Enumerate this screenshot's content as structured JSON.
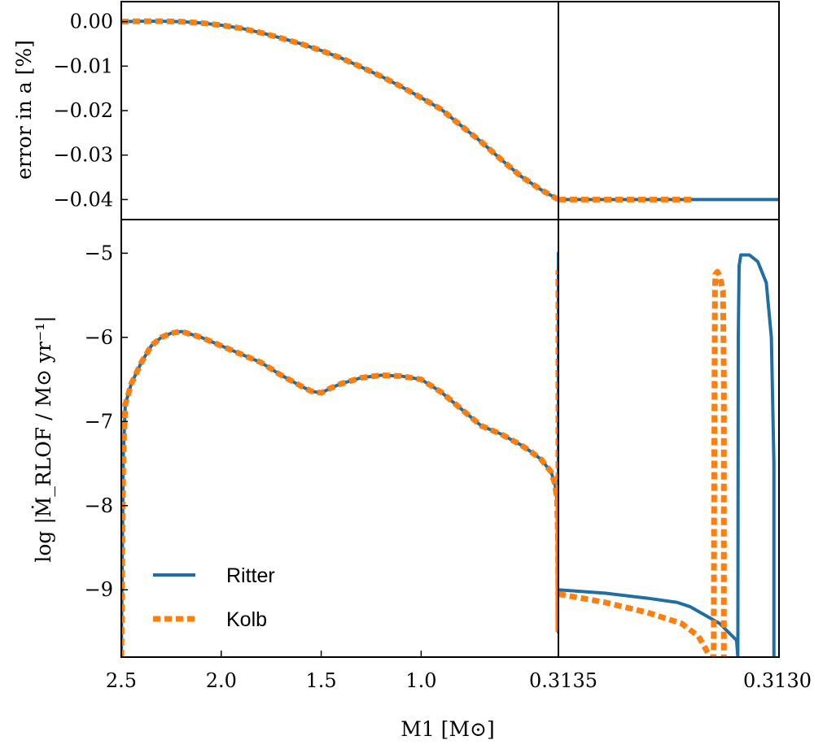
{
  "colors": {
    "ritter": "#1f6fa3",
    "kolb": "#ff7f0e",
    "axes": "#000000",
    "background": "#ffffff"
  },
  "chart_data": [
    {
      "id": "top-left",
      "type": "line",
      "ylabel": "error in a [%]",
      "xlim": [
        2.5,
        0.3135
      ],
      "ylim": [
        -0.0445,
        0.0045
      ],
      "yticks": [
        0.0,
        -0.01,
        -0.02,
        -0.03,
        -0.04
      ],
      "ytick_labels": [
        "0.00",
        "−0.01",
        "−0.02",
        "−0.03",
        "−0.04"
      ],
      "series": [
        {
          "name": "Ritter",
          "style": "solid",
          "x": [
            2.5,
            2.4,
            2.3,
            2.2,
            2.1,
            2.0,
            1.9,
            1.8,
            1.7,
            1.6,
            1.5,
            1.4,
            1.3,
            1.2,
            1.1,
            1.0,
            0.9,
            0.8,
            0.7,
            0.6,
            0.5,
            0.4,
            0.3135
          ],
          "y": [
            0.0,
            0.0001,
            0.0001,
            0.0,
            -0.0003,
            -0.0008,
            -0.0015,
            -0.0025,
            -0.0037,
            -0.005,
            -0.0065,
            -0.0082,
            -0.0102,
            -0.0123,
            -0.0146,
            -0.0171,
            -0.0197,
            -0.0234,
            -0.027,
            -0.031,
            -0.0348,
            -0.0378,
            -0.04
          ]
        },
        {
          "name": "Kolb",
          "style": "dashed",
          "x": [
            2.5,
            2.4,
            2.3,
            2.2,
            2.1,
            2.0,
            1.9,
            1.8,
            1.7,
            1.6,
            1.5,
            1.4,
            1.3,
            1.2,
            1.1,
            1.0,
            0.9,
            0.8,
            0.7,
            0.6,
            0.5,
            0.4,
            0.3135
          ],
          "y": [
            0.0,
            0.0001,
            0.0001,
            0.0,
            -0.0003,
            -0.0008,
            -0.0015,
            -0.0025,
            -0.0037,
            -0.005,
            -0.0065,
            -0.0082,
            -0.0102,
            -0.0123,
            -0.0146,
            -0.0171,
            -0.0197,
            -0.0234,
            -0.027,
            -0.031,
            -0.0348,
            -0.0378,
            -0.04
          ]
        }
      ]
    },
    {
      "id": "top-right",
      "type": "line",
      "xlim": [
        0.31351,
        0.31299
      ],
      "ylim": [
        -0.0445,
        0.0045
      ],
      "series": [
        {
          "name": "Ritter",
          "style": "solid",
          "x": [
            0.31351,
            0.31299
          ],
          "y": [
            -0.04,
            -0.04
          ]
        },
        {
          "name": "Kolb",
          "style": "dashed",
          "x": [
            0.31351,
            0.31319
          ],
          "y": [
            -0.04,
            -0.04
          ]
        }
      ]
    },
    {
      "id": "bottom-left",
      "type": "line",
      "ylabel": "log |Ṁ_RLOF / M⊙ yr⁻¹|",
      "xlabel": "M1 [M⊙]",
      "xlim": [
        2.5,
        0.3135
      ],
      "ylim": [
        -9.8,
        -4.6
      ],
      "xticks": [
        2.5,
        2.0,
        1.5,
        1.0
      ],
      "xtick_labels": [
        "2.5",
        "2.0",
        "1.5",
        "1.0"
      ],
      "yticks": [
        -5,
        -6,
        -7,
        -8,
        -9
      ],
      "ytick_labels": [
        "−5",
        "−6",
        "−7",
        "−8",
        "−9"
      ],
      "series": [
        {
          "name": "Ritter",
          "style": "solid",
          "x": [
            2.5,
            2.49,
            2.48,
            2.45,
            2.4,
            2.35,
            2.3,
            2.25,
            2.2,
            2.1,
            2.0,
            1.9,
            1.8,
            1.7,
            1.6,
            1.55,
            1.5,
            1.45,
            1.4,
            1.3,
            1.2,
            1.1,
            1.0,
            0.9,
            0.8,
            0.7,
            0.6,
            0.5,
            0.45,
            0.4,
            0.35,
            0.33,
            0.32,
            0.3155,
            0.3142,
            0.3138,
            0.3136,
            0.3135
          ],
          "y": [
            -9.8,
            -7.4,
            -6.8,
            -6.55,
            -6.3,
            -6.1,
            -6.0,
            -5.95,
            -5.93,
            -6.0,
            -6.1,
            -6.2,
            -6.3,
            -6.45,
            -6.58,
            -6.64,
            -6.66,
            -6.6,
            -6.55,
            -6.48,
            -6.45,
            -6.46,
            -6.5,
            -6.65,
            -6.85,
            -7.05,
            -7.15,
            -7.28,
            -7.36,
            -7.45,
            -7.6,
            -7.75,
            -7.95,
            -8.4,
            -9.0,
            -9.5,
            -6.5,
            -5.0
          ]
        },
        {
          "name": "Kolb",
          "style": "dashed",
          "x": [
            2.5,
            2.49,
            2.48,
            2.45,
            2.4,
            2.35,
            2.3,
            2.25,
            2.2,
            2.1,
            2.0,
            1.9,
            1.8,
            1.7,
            1.6,
            1.55,
            1.5,
            1.45,
            1.4,
            1.3,
            1.2,
            1.1,
            1.0,
            0.9,
            0.8,
            0.7,
            0.6,
            0.5,
            0.45,
            0.4,
            0.35,
            0.33,
            0.32,
            0.3155,
            0.3142,
            0.3138,
            0.3136,
            0.3135
          ],
          "y": [
            -9.8,
            -7.4,
            -6.8,
            -6.55,
            -6.3,
            -6.1,
            -6.0,
            -5.95,
            -5.93,
            -6.0,
            -6.1,
            -6.2,
            -6.3,
            -6.45,
            -6.58,
            -6.64,
            -6.66,
            -6.6,
            -6.55,
            -6.48,
            -6.45,
            -6.46,
            -6.5,
            -6.65,
            -6.85,
            -7.05,
            -7.15,
            -7.28,
            -7.36,
            -7.45,
            -7.6,
            -7.75,
            -7.95,
            -8.4,
            -9.0,
            -9.5,
            -6.5,
            -5.2
          ]
        }
      ]
    },
    {
      "id": "bottom-right",
      "type": "line",
      "xlim": [
        0.31351,
        0.31299
      ],
      "ylim": [
        -9.8,
        -4.6
      ],
      "xticks": [
        0.31351,
        0.31299
      ],
      "xtick_labels": [
        "0.3135",
        "0.3130"
      ],
      "series": [
        {
          "name": "Ritter",
          "style": "solid",
          "x": [
            0.31351,
            0.3134,
            0.3133,
            0.31323,
            0.3132,
            0.31313,
            0.31309,
            0.313087,
            0.313086,
            0.313084,
            0.31308,
            0.31306,
            0.31304,
            0.31302,
            0.313008,
            0.313002,
            0.313002
          ],
          "y": [
            -9.0,
            -9.04,
            -9.1,
            -9.15,
            -9.2,
            -9.4,
            -9.6,
            -9.8,
            -6.0,
            -5.15,
            -5.02,
            -5.02,
            -5.1,
            -5.35,
            -6.0,
            -7.5,
            -9.8
          ]
        },
        {
          "name": "Kolb",
          "style": "dashed",
          "x": [
            0.31351,
            0.3134,
            0.3133,
            0.31322,
            0.31318,
            0.313152,
            0.313144,
            0.313142,
            0.313141,
            0.31314,
            0.313135,
            0.31313,
            0.313122,
            0.31312,
            0.31312
          ],
          "y": [
            -9.05,
            -9.15,
            -9.27,
            -9.4,
            -9.55,
            -9.8,
            -9.8,
            -6.5,
            -5.45,
            -5.25,
            -5.22,
            -5.27,
            -5.45,
            -6.5,
            -9.8
          ]
        }
      ]
    }
  ],
  "legend": {
    "position": "lower-left",
    "entries": [
      {
        "label": "Ritter",
        "style": "solid"
      },
      {
        "label": "Kolb",
        "style": "dashed"
      }
    ]
  }
}
